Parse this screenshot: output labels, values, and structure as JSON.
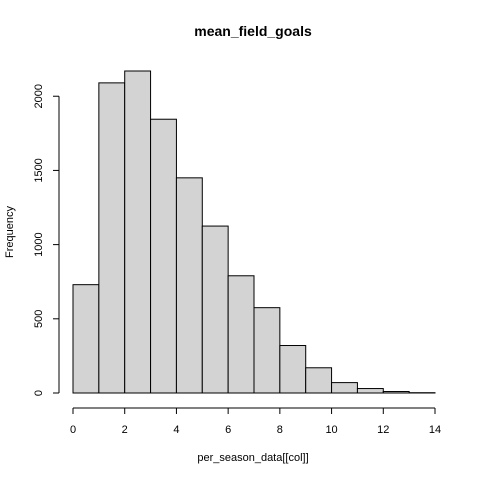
{
  "chart_data": {
    "type": "bar",
    "title": "mean_field_goals",
    "xlabel": "per_season_data[[col]]",
    "ylabel": "Frequency",
    "bins": [
      {
        "start": 0,
        "end": 1,
        "count": 730
      },
      {
        "start": 1,
        "end": 2,
        "count": 2090
      },
      {
        "start": 2,
        "end": 3,
        "count": 2170
      },
      {
        "start": 3,
        "end": 4,
        "count": 1845
      },
      {
        "start": 4,
        "end": 5,
        "count": 1450
      },
      {
        "start": 5,
        "end": 6,
        "count": 1125
      },
      {
        "start": 6,
        "end": 7,
        "count": 790
      },
      {
        "start": 7,
        "end": 8,
        "count": 575
      },
      {
        "start": 8,
        "end": 9,
        "count": 320
      },
      {
        "start": 9,
        "end": 10,
        "count": 170
      },
      {
        "start": 10,
        "end": 11,
        "count": 70
      },
      {
        "start": 11,
        "end": 12,
        "count": 30
      },
      {
        "start": 12,
        "end": 13,
        "count": 10
      },
      {
        "start": 13,
        "end": 14,
        "count": 2
      }
    ],
    "xlim": [
      0,
      14
    ],
    "ylim": [
      0,
      2170
    ],
    "x_ticks": [
      0,
      2,
      4,
      6,
      8,
      10,
      12,
      14
    ],
    "y_ticks": [
      0,
      500,
      1000,
      1500,
      2000
    ],
    "bar_color": "#d3d3d3",
    "grid": false,
    "legend": "none"
  }
}
